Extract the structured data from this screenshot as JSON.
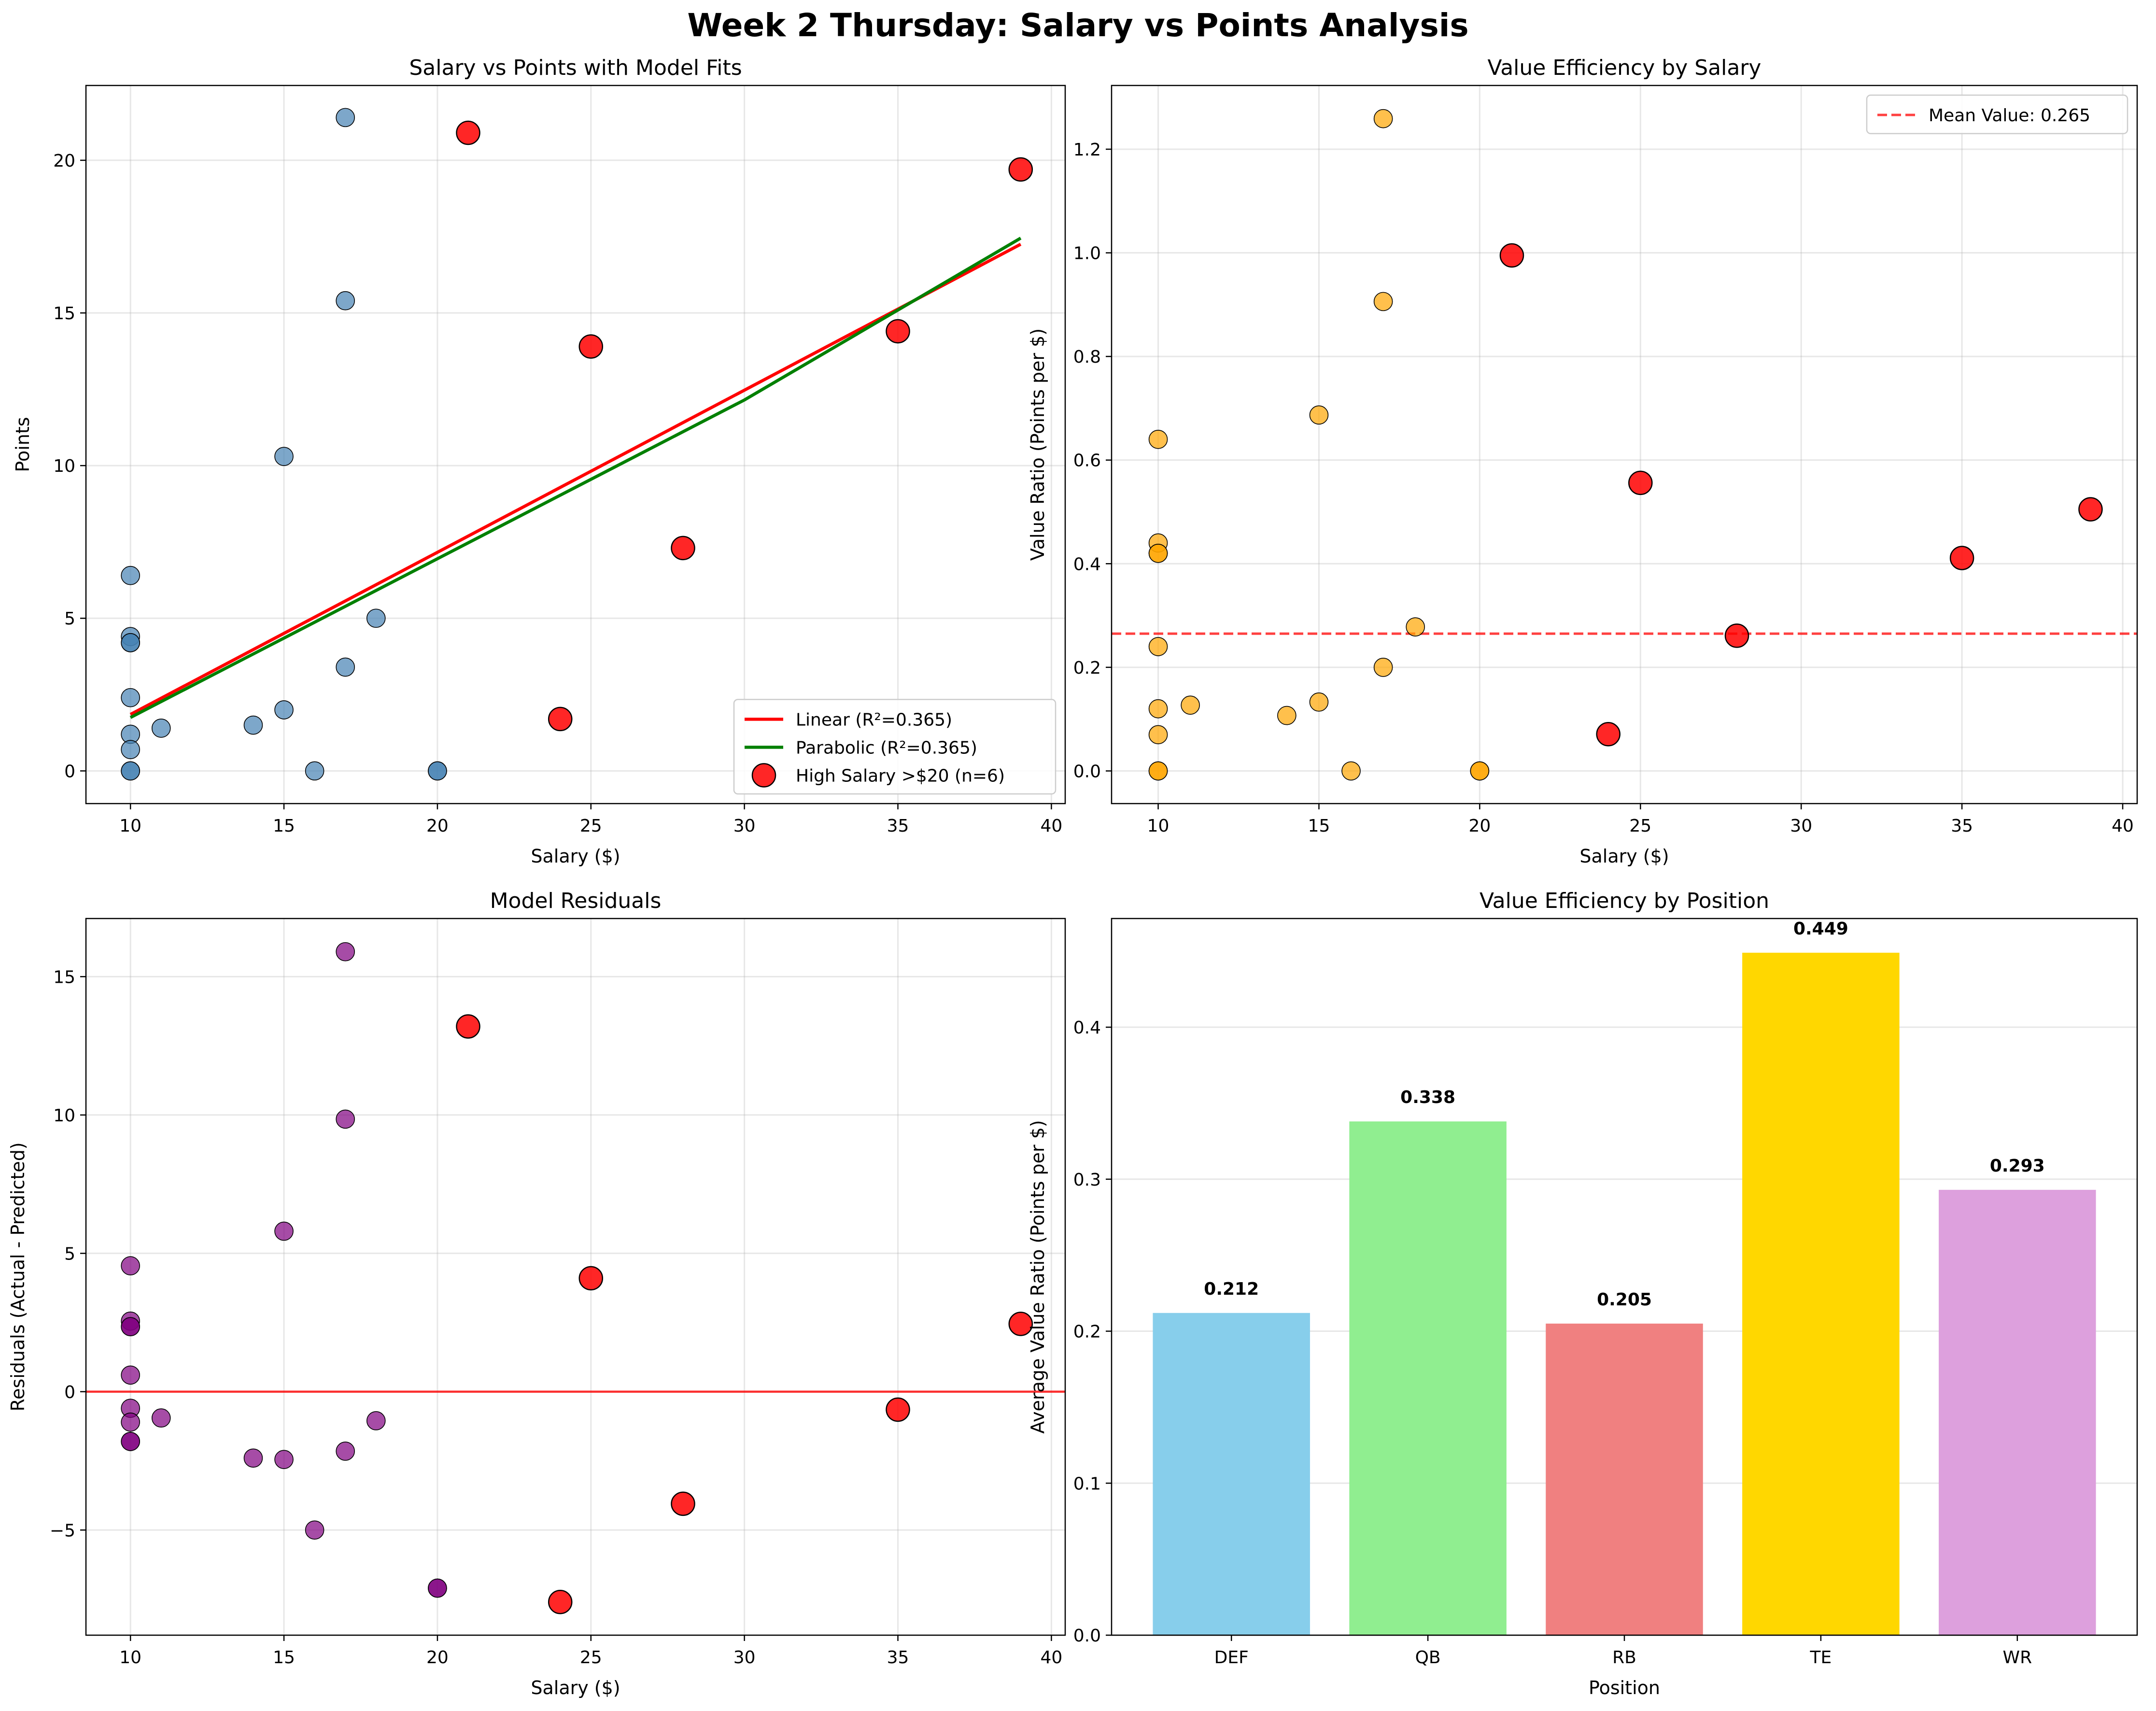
{
  "suptitle": "Week 2 Thursday: Salary vs Points Analysis",
  "chart_data": [
    {
      "id": "p1",
      "type": "scatter",
      "title": "Salary vs Points with Model Fits",
      "xlabel": "Salary ($)",
      "ylabel": "Points",
      "xlim": [
        8.55,
        40.45
      ],
      "ylim": [
        -1.07,
        22.45
      ],
      "xticks": [
        10,
        15,
        20,
        25,
        30,
        35,
        40
      ],
      "yticks": [
        0,
        5,
        10,
        15,
        20
      ],
      "grid": true,
      "legend_position": "lower-right",
      "series": [
        {
          "role": "base",
          "color": "#4682b4",
          "points": [
            [
              10,
              6.4
            ],
            [
              10,
              4.4
            ],
            [
              10,
              4.2
            ],
            [
              10,
              4.2
            ],
            [
              10,
              2.4
            ],
            [
              10,
              1.2
            ],
            [
              10,
              0.7
            ],
            [
              10,
              0
            ],
            [
              10,
              0
            ],
            [
              11,
              1.4
            ],
            [
              14,
              1.5
            ],
            [
              15,
              10.3
            ],
            [
              15,
              2.0
            ],
            [
              16,
              0
            ],
            [
              17,
              21.4
            ],
            [
              17,
              15.4
            ],
            [
              17,
              3.4
            ],
            [
              18,
              5.0
            ],
            [
              20,
              0
            ],
            [
              20,
              0
            ]
          ]
        },
        {
          "role": "highlight",
          "name": "High Salary >$20 (n=6)",
          "color": "#ff0000",
          "points": [
            [
              21,
              20.9
            ],
            [
              24,
              1.7
            ],
            [
              25,
              13.9
            ],
            [
              28,
              7.3
            ],
            [
              35,
              14.4
            ],
            [
              39,
              19.7
            ]
          ]
        },
        {
          "role": "line",
          "name": "Linear (R²=0.365)",
          "color": "#ff0000",
          "points": [
            [
              10,
              1.85
            ],
            [
              39,
              17.25
            ]
          ]
        },
        {
          "role": "curve",
          "name": "Parabolic (R²=0.365)",
          "color": "#008000",
          "points": [
            [
              10,
              1.75
            ],
            [
              20,
              6.95
            ],
            [
              30,
              12.15
            ],
            [
              39,
              17.45
            ]
          ]
        }
      ]
    },
    {
      "id": "p2",
      "type": "scatter",
      "title": "Value Efficiency by Salary",
      "xlabel": "Salary ($)",
      "ylabel": "Value Ratio (Points per $)",
      "xlim": [
        8.55,
        40.45
      ],
      "ylim": [
        -0.063,
        1.323
      ],
      "xticks": [
        10,
        15,
        20,
        25,
        30,
        35,
        40
      ],
      "yticks": [
        0.0,
        0.2,
        0.4,
        0.6,
        0.8,
        1.0,
        1.2
      ],
      "yformat": 1,
      "grid": true,
      "legend_position": "upper-right",
      "series": [
        {
          "role": "base",
          "color": "#ffa500",
          "points": [
            [
              10,
              0.64
            ],
            [
              10,
              0.44
            ],
            [
              10,
              0.42
            ],
            [
              10,
              0.42
            ],
            [
              10,
              0.24
            ],
            [
              10,
              0.12
            ],
            [
              10,
              0.07
            ],
            [
              10,
              0
            ],
            [
              10,
              0
            ],
            [
              11,
              0.127
            ],
            [
              14,
              0.107
            ],
            [
              15,
              0.687
            ],
            [
              15,
              0.133
            ],
            [
              16,
              0
            ],
            [
              17,
              1.259
            ],
            [
              17,
              0.906
            ],
            [
              17,
              0.2
            ],
            [
              18,
              0.278
            ],
            [
              20,
              0
            ],
            [
              20,
              0
            ]
          ]
        },
        {
          "role": "highlight",
          "color": "#ff0000",
          "points": [
            [
              21,
              0.995
            ],
            [
              24,
              0.071
            ],
            [
              25,
              0.556
            ],
            [
              28,
              0.261
            ],
            [
              35,
              0.411
            ],
            [
              39,
              0.505
            ]
          ]
        },
        {
          "role": "hline",
          "name": "Mean Value: 0.265",
          "color": "#ff0000",
          "y": 0.265
        }
      ]
    },
    {
      "id": "p3",
      "type": "scatter",
      "title": "Model Residuals",
      "xlabel": "Salary ($)",
      "ylabel": "Residuals (Actual - Predicted)",
      "xlim": [
        8.55,
        40.45
      ],
      "ylim": [
        -8.8,
        17.1
      ],
      "xticks": [
        10,
        15,
        20,
        25,
        30,
        35,
        40
      ],
      "yticks": [
        -5,
        0,
        5,
        10,
        15
      ],
      "grid": true,
      "series": [
        {
          "role": "base",
          "color": "#800080",
          "points": [
            [
              10,
              4.55
            ],
            [
              10,
              2.55
            ],
            [
              10,
              2.35
            ],
            [
              10,
              2.35
            ],
            [
              10,
              0.6
            ],
            [
              10,
              -0.6
            ],
            [
              10,
              -1.1
            ],
            [
              10,
              -1.8
            ],
            [
              10,
              -1.8
            ],
            [
              11,
              -0.95
            ],
            [
              14,
              -2.4
            ],
            [
              15,
              5.8
            ],
            [
              15,
              -2.45
            ],
            [
              16,
              -5.0
            ],
            [
              17,
              15.9
            ],
            [
              17,
              9.85
            ],
            [
              17,
              -2.15
            ],
            [
              18,
              -1.05
            ],
            [
              20,
              -7.1
            ],
            [
              20,
              -7.1
            ]
          ]
        },
        {
          "role": "highlight",
          "color": "#ff0000",
          "points": [
            [
              21,
              13.2
            ],
            [
              24,
              -7.6
            ],
            [
              25,
              4.1
            ],
            [
              28,
              -4.05
            ],
            [
              35,
              -0.65
            ],
            [
              39,
              2.45
            ]
          ]
        },
        {
          "role": "hline",
          "color": "#ff0000",
          "y": 0
        }
      ]
    },
    {
      "id": "p4",
      "type": "bar",
      "title": "Value Efficiency by Position",
      "xlabel": "Position",
      "ylabel": "Average Value Ratio (Points per $)",
      "ylim": [
        0,
        0.4715
      ],
      "yticks": [
        0.0,
        0.1,
        0.2,
        0.3,
        0.4
      ],
      "yformat": 1,
      "grid": true,
      "categories": [
        "DEF",
        "QB",
        "RB",
        "TE",
        "WR"
      ],
      "values": [
        0.212,
        0.338,
        0.205,
        0.449,
        0.293
      ],
      "value_labels": [
        "0.212",
        "0.338",
        "0.205",
        "0.449",
        "0.293"
      ],
      "colors": [
        "#87ceeb",
        "#90ee90",
        "#f08080",
        "#ffd700",
        "#dda0dd"
      ]
    }
  ]
}
